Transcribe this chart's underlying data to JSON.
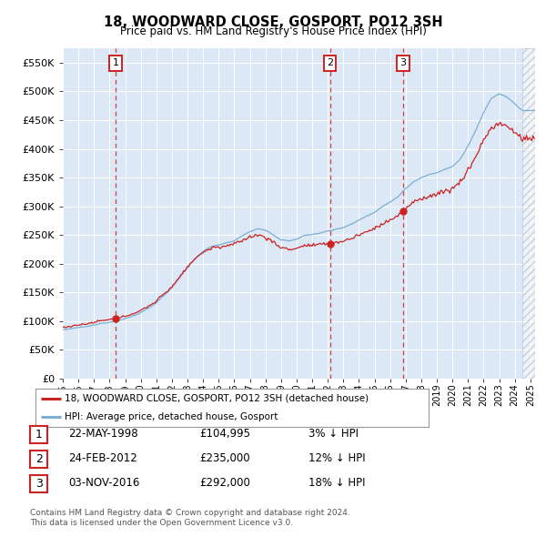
{
  "title": "18, WOODWARD CLOSE, GOSPORT, PO12 3SH",
  "subtitle": "Price paid vs. HM Land Registry's House Price Index (HPI)",
  "hpi_color": "#7bafd4",
  "price_color": "#cc2222",
  "bg_color": "#dce8f5",
  "ylim": [
    0,
    575000
  ],
  "yticks": [
    0,
    50000,
    100000,
    150000,
    200000,
    250000,
    300000,
    350000,
    400000,
    450000,
    500000,
    550000
  ],
  "transaction_dates_yr": [
    1998.38,
    2012.15,
    2016.84
  ],
  "transaction_prices": [
    104995,
    235000,
    292000
  ],
  "transaction_labels_text": [
    "1",
    "2",
    "3"
  ],
  "hpi_anchors_yr": [
    1995.0,
    1995.5,
    1996.0,
    1996.5,
    1997.0,
    1997.5,
    1998.0,
    1998.5,
    1999.0,
    1999.5,
    2000.0,
    2000.5,
    2001.0,
    2001.5,
    2002.0,
    2002.5,
    2003.0,
    2003.5,
    2004.0,
    2004.5,
    2005.0,
    2005.5,
    2006.0,
    2006.5,
    2007.0,
    2007.5,
    2008.0,
    2008.5,
    2009.0,
    2009.5,
    2010.0,
    2010.5,
    2011.0,
    2011.5,
    2012.0,
    2012.5,
    2013.0,
    2013.5,
    2014.0,
    2014.5,
    2015.0,
    2015.5,
    2016.0,
    2016.5,
    2017.0,
    2017.5,
    2018.0,
    2018.5,
    2019.0,
    2019.5,
    2020.0,
    2020.5,
    2021.0,
    2021.5,
    2022.0,
    2022.5,
    2023.0,
    2023.5,
    2024.0,
    2024.5
  ],
  "hpi_anchors_val": [
    84000,
    85000,
    86500,
    88000,
    90000,
    93000,
    96000,
    100000,
    104000,
    108000,
    114000,
    122000,
    132000,
    145000,
    158000,
    175000,
    192000,
    208000,
    220000,
    228000,
    232000,
    236000,
    240000,
    248000,
    255000,
    260000,
    258000,
    250000,
    240000,
    238000,
    242000,
    248000,
    250000,
    252000,
    256000,
    260000,
    262000,
    268000,
    275000,
    283000,
    290000,
    300000,
    308000,
    318000,
    332000,
    344000,
    352000,
    358000,
    362000,
    368000,
    372000,
    385000,
    408000,
    435000,
    465000,
    490000,
    498000,
    492000,
    480000,
    468000
  ],
  "legend_entries": [
    "18, WOODWARD CLOSE, GOSPORT, PO12 3SH (detached house)",
    "HPI: Average price, detached house, Gosport"
  ],
  "table_rows": [
    {
      "label": "1",
      "date": "22-MAY-1998",
      "price": "£104,995",
      "rel": "3% ↓ HPI"
    },
    {
      "label": "2",
      "date": "24-FEB-2012",
      "price": "£235,000",
      "rel": "12% ↓ HPI"
    },
    {
      "label": "3",
      "date": "03-NOV-2016",
      "price": "£292,000",
      "rel": "18% ↓ HPI"
    }
  ],
  "footer_lines": [
    "Contains HM Land Registry data © Crown copyright and database right 2024.",
    "This data is licensed under the Open Government Licence v3.0."
  ],
  "xmin": 1995.0,
  "xmax": 2025.3,
  "hatch_start": 2024.5
}
